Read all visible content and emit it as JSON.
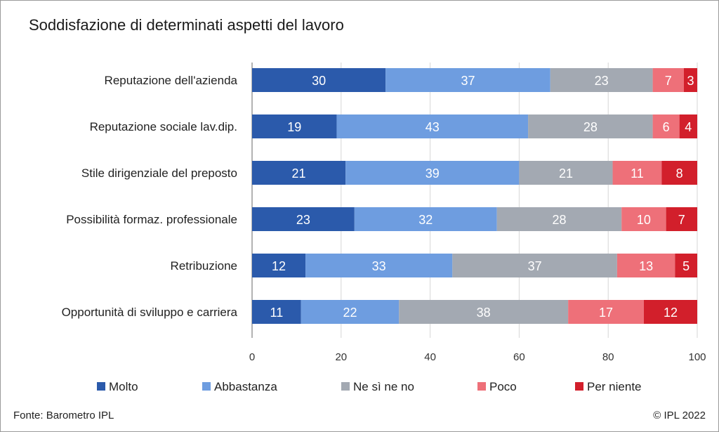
{
  "chart_data": {
    "type": "bar",
    "orientation": "horizontal",
    "stacked": true,
    "title": "Soddisfazione di determinati aspetti del lavoro",
    "categories": [
      "Reputazione dell'azienda",
      "Reputazione sociale lav.dip.",
      "Stile dirigenziale del preposto",
      "Possibilità formaz. professionale",
      "Retribuzione",
      "Opportunità di sviluppo e carriera"
    ],
    "series": [
      {
        "name": "Molto",
        "color": "#2b5aab",
        "values": [
          30,
          19,
          21,
          23,
          12,
          11
        ]
      },
      {
        "name": "Abbastanza",
        "color": "#6e9de0",
        "values": [
          37,
          43,
          39,
          32,
          33,
          22
        ]
      },
      {
        "name": "Ne sì ne no",
        "color": "#a3a9b2",
        "values": [
          23,
          28,
          21,
          28,
          37,
          38
        ]
      },
      {
        "name": "Poco",
        "color": "#ee7079",
        "values": [
          7,
          6,
          11,
          10,
          13,
          17
        ]
      },
      {
        "name": "Per niente",
        "color": "#d21f2b",
        "values": [
          3,
          4,
          8,
          7,
          5,
          12
        ]
      }
    ],
    "xlim": [
      0,
      100
    ],
    "xticks": [
      "0",
      "20",
      "40",
      "60",
      "80",
      "100"
    ],
    "grid": true,
    "legend_position": "bottom"
  },
  "footer": {
    "source": "Fonte: Barometro IPL",
    "copyright": "© IPL 2022"
  }
}
